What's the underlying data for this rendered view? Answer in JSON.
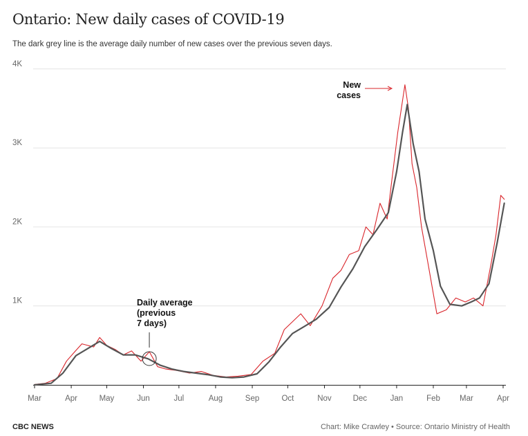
{
  "title": "Ontario: New daily cases of COVID-19",
  "subtitle": "The dark grey line is the average daily number of new cases over the previous seven days.",
  "footer": {
    "brand": "CBC NEWS",
    "credit": "Chart: Mike Crawley • Source: Ontario Ministry of Health"
  },
  "colors": {
    "new_cases": "#d9242a",
    "average": "#555555",
    "grid": "#e4e4e4"
  },
  "annotations": {
    "new_cases": [
      "New",
      "cases"
    ],
    "average": [
      "Daily average",
      "(previous",
      "7 days)"
    ]
  },
  "chart_data": {
    "type": "line",
    "xlabel": "",
    "ylabel": "",
    "x_ticks": [
      "Mar",
      "Apr",
      "May",
      "Jun",
      "Jul",
      "Aug",
      "Sep",
      "Oct",
      "Nov",
      "Dec",
      "Jan",
      "Feb",
      "Mar",
      "Apr"
    ],
    "y_ticks": [
      "1K",
      "2K",
      "3K",
      "4K"
    ],
    "ylim": [
      0,
      4200
    ],
    "grid": true,
    "series": [
      {
        "id": "new_cases",
        "x": [
          "2020-03-01",
          "2020-03-10",
          "2020-03-20",
          "2020-03-28",
          "2020-04-04",
          "2020-04-10",
          "2020-04-15",
          "2020-04-20",
          "2020-04-25",
          "2020-05-01",
          "2020-05-08",
          "2020-05-15",
          "2020-05-22",
          "2020-05-30",
          "2020-06-06",
          "2020-06-13",
          "2020-06-20",
          "2020-06-30",
          "2020-07-10",
          "2020-07-20",
          "2020-07-30",
          "2020-08-10",
          "2020-08-20",
          "2020-08-31",
          "2020-09-10",
          "2020-09-20",
          "2020-09-28",
          "2020-10-05",
          "2020-10-12",
          "2020-10-20",
          "2020-10-30",
          "2020-11-08",
          "2020-11-15",
          "2020-11-22",
          "2020-11-30",
          "2020-12-06",
          "2020-12-12",
          "2020-12-18",
          "2020-12-24",
          "2020-12-28",
          "2021-01-02",
          "2021-01-08",
          "2021-01-11",
          "2021-01-14",
          "2021-01-18",
          "2021-01-22",
          "2021-01-28",
          "2021-02-04",
          "2021-02-12",
          "2021-02-20",
          "2021-02-28",
          "2021-03-07",
          "2021-03-15",
          "2021-03-22",
          "2021-03-26",
          "2021-03-30",
          "2021-04-02"
        ],
        "values": [
          5,
          20,
          80,
          300,
          420,
          520,
          500,
          480,
          600,
          500,
          450,
          380,
          430,
          300,
          420,
          230,
          200,
          180,
          150,
          170,
          120,
          100,
          110,
          130,
          300,
          400,
          700,
          800,
          900,
          750,
          1000,
          1350,
          1450,
          1650,
          1700,
          2000,
          1900,
          2300,
          2100,
          2600,
          3200,
          3800,
          3500,
          2800,
          2500,
          2000,
          1500,
          900,
          950,
          1100,
          1050,
          1100,
          1000,
          1550,
          1900,
          2400,
          2350
        ]
      },
      {
        "id": "average",
        "x": [
          "2020-03-01",
          "2020-03-15",
          "2020-03-25",
          "2020-04-05",
          "2020-04-15",
          "2020-04-25",
          "2020-05-05",
          "2020-05-15",
          "2020-05-25",
          "2020-06-05",
          "2020-06-15",
          "2020-06-25",
          "2020-07-05",
          "2020-07-15",
          "2020-07-25",
          "2020-08-05",
          "2020-08-15",
          "2020-08-25",
          "2020-09-05",
          "2020-09-15",
          "2020-09-25",
          "2020-10-05",
          "2020-10-15",
          "2020-10-25",
          "2020-11-05",
          "2020-11-15",
          "2020-11-25",
          "2020-12-05",
          "2020-12-15",
          "2020-12-25",
          "2021-01-01",
          "2021-01-06",
          "2021-01-10",
          "2021-01-15",
          "2021-01-20",
          "2021-01-25",
          "2021-02-01",
          "2021-02-07",
          "2021-02-15",
          "2021-02-25",
          "2021-03-05",
          "2021-03-12",
          "2021-03-20",
          "2021-03-27",
          "2021-04-02"
        ],
        "values": [
          0,
          20,
          150,
          370,
          460,
          550,
          460,
          380,
          380,
          330,
          250,
          200,
          170,
          150,
          130,
          100,
          90,
          100,
          140,
          290,
          480,
          650,
          740,
          830,
          980,
          1240,
          1470,
          1750,
          1960,
          2180,
          2700,
          3200,
          3550,
          3050,
          2700,
          2100,
          1700,
          1250,
          1020,
          1000,
          1050,
          1100,
          1280,
          1800,
          2300
        ]
      }
    ]
  }
}
